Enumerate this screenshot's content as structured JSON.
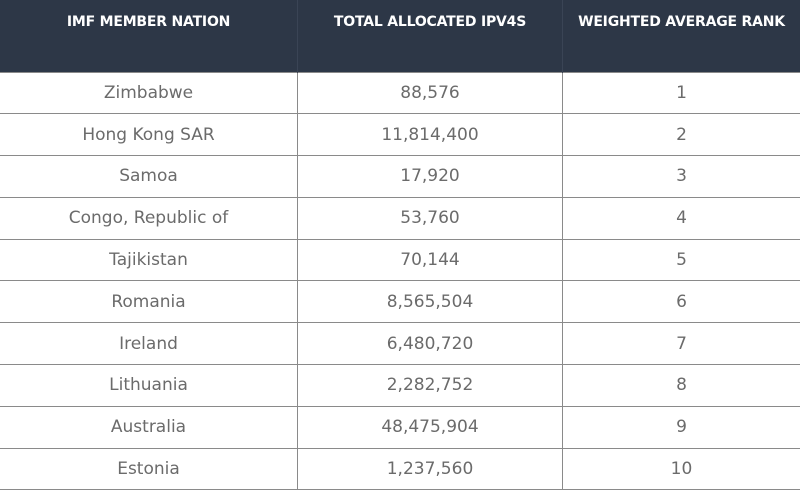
{
  "table": {
    "headers": [
      "IMF MEMBER NATION",
      "TOTAL ALLOCATED IPV4S",
      "WEIGHTED AVERAGE RANK"
    ],
    "rows": [
      [
        "Zimbabwe",
        "88,576",
        "1"
      ],
      [
        "Hong Kong SAR",
        "11,814,400",
        "2"
      ],
      [
        "Samoa",
        "17,920",
        "3"
      ],
      [
        "Congo, Republic of",
        "53,760",
        "4"
      ],
      [
        "Tajikistan",
        "70,144",
        "5"
      ],
      [
        "Romania",
        "8,565,504",
        "6"
      ],
      [
        "Ireland",
        "6,480,720",
        "7"
      ],
      [
        "Lithuania",
        "2,282,752",
        "8"
      ],
      [
        "Australia",
        "48,475,904",
        "9"
      ],
      [
        "Estonia",
        "1,237,560",
        "10"
      ]
    ]
  },
  "colors": {
    "header_background": "#2d3747",
    "header_text": "#ffffff",
    "cell_text": "#6b6b6b",
    "cell_border": "#8a8a8a"
  }
}
